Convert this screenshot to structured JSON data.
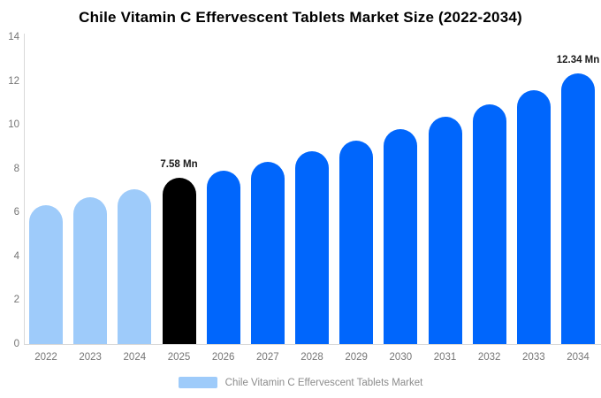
{
  "title": "Chile Vitamin C Effervescent Tablets Market Size (2022-2034)",
  "colors": {
    "historical_bar": "#9ecbfa",
    "forecast_bar": "#0066fc",
    "highlight_bar": "#000000",
    "axis_line": "#d9d9d9",
    "tick_text": "#757575",
    "legend_text": "#8c8c8c"
  },
  "chart_data": {
    "type": "bar",
    "title": "Chile Vitamin C Effervescent Tablets Market Size (2022-2034)",
    "xlabel": "",
    "ylabel": "",
    "ylim": [
      0,
      14
    ],
    "yticks": [
      0,
      2,
      4,
      6,
      8,
      10,
      12,
      14
    ],
    "grid": false,
    "legend_position": "bottom",
    "unit": "Mn",
    "categories": [
      "2022",
      "2023",
      "2024",
      "2025",
      "2026",
      "2027",
      "2028",
      "2029",
      "2030",
      "2031",
      "2032",
      "2033",
      "2034"
    ],
    "bars": [
      {
        "year": "2022",
        "value": 6.35,
        "color": "#9ecbfa",
        "label": ""
      },
      {
        "year": "2023",
        "value": 6.7,
        "color": "#9ecbfa",
        "label": ""
      },
      {
        "year": "2024",
        "value": 7.05,
        "color": "#9ecbfa",
        "label": ""
      },
      {
        "year": "2025",
        "value": 7.58,
        "color": "#000000",
        "label": "7.58 Mn"
      },
      {
        "year": "2026",
        "value": 7.9,
        "color": "#0066fc",
        "label": ""
      },
      {
        "year": "2027",
        "value": 8.3,
        "color": "#0066fc",
        "label": ""
      },
      {
        "year": "2028",
        "value": 8.8,
        "color": "#0066fc",
        "label": ""
      },
      {
        "year": "2029",
        "value": 9.3,
        "color": "#0066fc",
        "label": ""
      },
      {
        "year": "2030",
        "value": 9.8,
        "color": "#0066fc",
        "label": ""
      },
      {
        "year": "2031",
        "value": 10.35,
        "color": "#0066fc",
        "label": ""
      },
      {
        "year": "2032",
        "value": 10.95,
        "color": "#0066fc",
        "label": ""
      },
      {
        "year": "2033",
        "value": 11.6,
        "color": "#0066fc",
        "label": ""
      },
      {
        "year": "2034",
        "value": 12.34,
        "color": "#0066fc",
        "label": "12.34 Mn"
      }
    ],
    "legend": [
      {
        "label": "Chile Vitamin C Effervescent Tablets Market",
        "color": "#9ecbfa"
      }
    ]
  }
}
